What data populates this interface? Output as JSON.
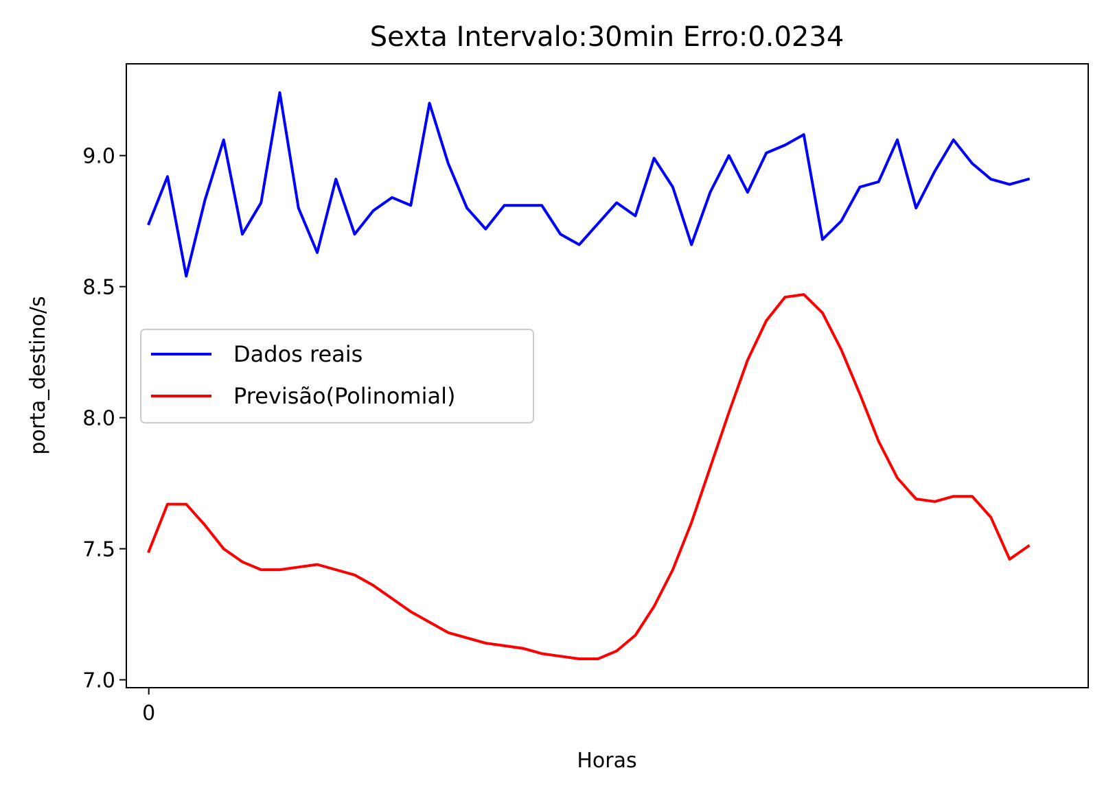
{
  "chart_data": {
    "type": "line",
    "title": "Sexta Intervalo:30min Erro:0.0234",
    "xlabel": "Horas",
    "ylabel": "porta_destino/s",
    "xlim": [
      -1.2,
      50.2
    ],
    "ylim": [
      6.97,
      9.35
    ],
    "xticks": [
      {
        "value": 0,
        "label": "0"
      }
    ],
    "yticks": [
      {
        "value": 7.0,
        "label": "7.0"
      },
      {
        "value": 7.5,
        "label": "7.5"
      },
      {
        "value": 8.0,
        "label": "8.0"
      },
      {
        "value": 8.5,
        "label": "8.5"
      },
      {
        "value": 9.0,
        "label": "9.0"
      }
    ],
    "grid": false,
    "legend_position": "center-left",
    "series": [
      {
        "name": "Dados reais",
        "color": "#0000ff",
        "values": [
          8.74,
          8.92,
          8.54,
          8.83,
          9.06,
          8.7,
          8.82,
          9.24,
          8.8,
          8.63,
          8.91,
          8.7,
          8.79,
          8.84,
          8.81,
          9.2,
          8.97,
          8.8,
          8.72,
          8.81,
          8.81,
          8.81,
          8.7,
          8.66,
          8.74,
          8.82,
          8.77,
          8.99,
          8.88,
          8.66,
          8.86,
          9.0,
          8.86,
          9.01,
          9.04,
          9.08,
          8.68,
          8.75,
          8.88,
          8.9,
          9.06,
          8.8,
          8.94,
          9.06,
          8.97,
          8.91,
          8.89,
          8.91
        ]
      },
      {
        "name": "Previsão(Polinomial)",
        "color": "#ff0000",
        "values": [
          7.49,
          7.67,
          7.67,
          7.59,
          7.5,
          7.45,
          7.42,
          7.42,
          7.43,
          7.44,
          7.42,
          7.4,
          7.36,
          7.31,
          7.26,
          7.22,
          7.18,
          7.16,
          7.14,
          7.13,
          7.12,
          7.1,
          7.09,
          7.08,
          7.08,
          7.11,
          7.17,
          7.28,
          7.42,
          7.6,
          7.81,
          8.02,
          8.22,
          8.37,
          8.46,
          8.47,
          8.4,
          8.26,
          8.09,
          7.91,
          7.77,
          7.69,
          7.68,
          7.7,
          7.7,
          7.62,
          7.46,
          7.51
        ]
      }
    ]
  }
}
